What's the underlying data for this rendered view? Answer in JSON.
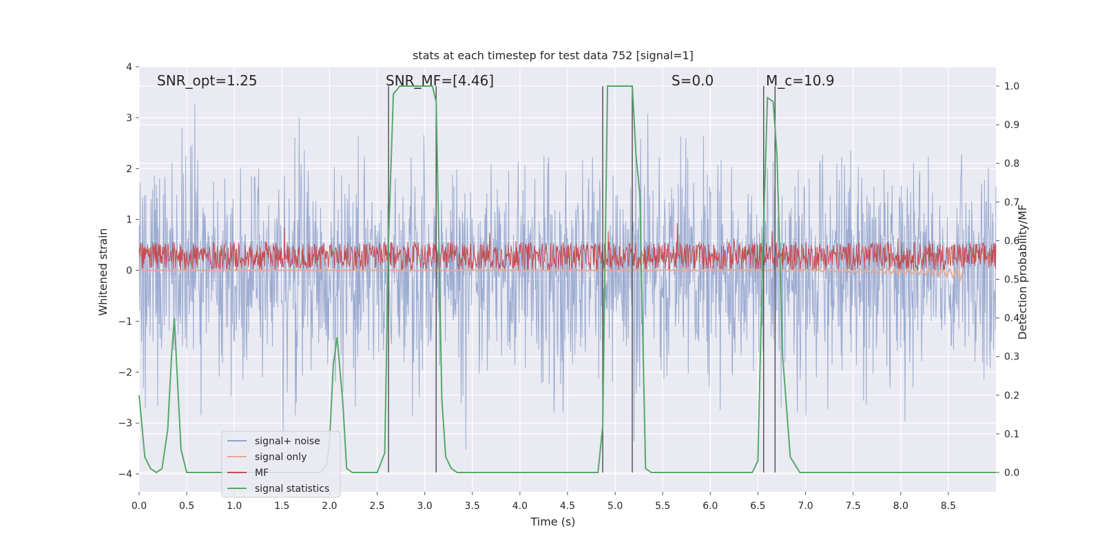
{
  "chart_data": {
    "type": "line",
    "title": "stats at each timestep for test data 752 [signal=1]",
    "xlabel": "Time (s)",
    "ylabel": "Whitened strain",
    "ylabel_right": "Detection probability/MF",
    "xlim": [
      0,
      9.0
    ],
    "ylim": [
      -4.35,
      4.0
    ],
    "ylim_right": [
      -0.05,
      1.05
    ],
    "x_ticks": [
      "0.0",
      "0.5",
      "1.0",
      "1.5",
      "2.0",
      "2.5",
      "3.0",
      "3.5",
      "4.0",
      "4.5",
      "5.0",
      "5.5",
      "6.0",
      "6.5",
      "7.0",
      "7.5",
      "8.0",
      "8.5"
    ],
    "y_ticks": [
      "4",
      "3",
      "2",
      "1",
      "0",
      "−1",
      "−2",
      "−3",
      "−4"
    ],
    "y_ticks_right": [
      "1.0",
      "0.9",
      "0.8",
      "0.7",
      "0.6",
      "0.5",
      "0.4",
      "0.3",
      "0.2",
      "0.1",
      "0.0"
    ],
    "annotations": [
      {
        "text": "SNR_opt=1.25",
        "x": 0.2,
        "y": 3.6
      },
      {
        "text": "SNR_MF=[4.46]",
        "x": 2.6,
        "y": 3.6
      },
      {
        "text": "S=0.0",
        "x": 5.6,
        "y": 3.6
      },
      {
        "text": "M_c=10.9",
        "x": 6.6,
        "y": 3.6
      }
    ],
    "legend": {
      "position": "lower-left",
      "entries": [
        "signal+ noise",
        "signal only",
        "MF",
        "signal statistics"
      ]
    },
    "colors": {
      "noise": "#8da0cb",
      "signal": "#e8a98f",
      "mf": "#c44e52",
      "stats": "#55a868",
      "vlines": "#555555",
      "background": "#eaeaf2"
    },
    "series": [
      {
        "name": "signal statistics",
        "axis": "right",
        "x": [
          0.0,
          0.06,
          0.12,
          0.18,
          0.24,
          0.3,
          0.34,
          0.37,
          0.39,
          0.44,
          0.5,
          1.9,
          1.97,
          2.0,
          2.04,
          2.08,
          2.14,
          2.18,
          2.24,
          2.5,
          2.58,
          2.62,
          2.67,
          2.74,
          2.8,
          2.86,
          3.0,
          3.08,
          3.12,
          3.18,
          3.22,
          3.28,
          3.34,
          4.82,
          4.87,
          4.92,
          5.0,
          5.06,
          5.18,
          5.22,
          5.26,
          5.32,
          5.38,
          6.44,
          6.5,
          6.55,
          6.6,
          6.66,
          6.7,
          6.76,
          6.84,
          6.94,
          9.0
        ],
        "y": [
          0.2,
          0.04,
          0.01,
          0.0,
          0.01,
          0.11,
          0.3,
          0.4,
          0.3,
          0.06,
          0.0,
          0.0,
          0.02,
          0.08,
          0.28,
          0.35,
          0.18,
          0.01,
          0.0,
          0.0,
          0.05,
          0.6,
          0.98,
          1.0,
          1.0,
          1.0,
          1.0,
          1.0,
          0.96,
          0.19,
          0.04,
          0.01,
          0.0,
          0.0,
          0.12,
          1.0,
          1.0,
          1.0,
          1.0,
          0.82,
          0.72,
          0.01,
          0.0,
          0.0,
          0.03,
          0.57,
          0.97,
          0.96,
          0.82,
          0.3,
          0.04,
          0.0,
          0.0
        ]
      }
    ],
    "vlines": [
      2.62,
      3.12,
      4.87,
      5.18,
      6.56,
      6.68
    ],
    "signal_only": {
      "x": [
        0.0,
        6.5,
        7.0,
        7.5,
        8.0,
        8.3,
        8.5,
        8.6,
        8.66
      ],
      "center": [
        0.0,
        0.0,
        0.0,
        -0.01,
        -0.02,
        -0.03,
        -0.05,
        -0.07,
        -0.1
      ],
      "amplitude": [
        0.0,
        0.01,
        0.02,
        0.03,
        0.05,
        0.06,
        0.08,
        0.1,
        0.12
      ]
    }
  }
}
